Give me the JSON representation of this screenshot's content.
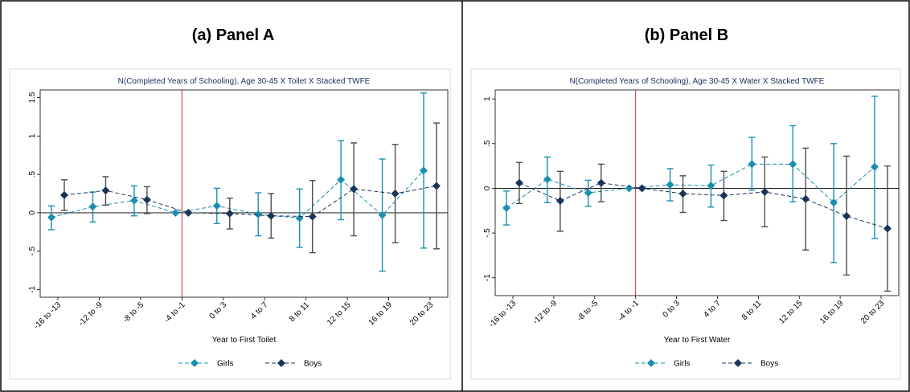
{
  "colors": {
    "girls": "#1b8fb0",
    "boys": "#1a3558",
    "boys_ci": "#4d4d4d",
    "event_line": "#cc3333",
    "background": "#ffffff",
    "border": "#000000"
  },
  "panels": [
    {
      "panel_title": "(a) Panel A",
      "chart_data": {
        "type": "line",
        "title": "N(Completed Years of Schooling), Age 30-45 X Toilet X Stacked TWFE",
        "xlabel": "Year to First Toilet",
        "ylabel": "",
        "categories": [
          "-16 to -13",
          "-12 to -9",
          "-8 to -5",
          "-4 to -1",
          "0 to 3",
          "4 to 7",
          "8 to 11",
          "12 to 15",
          "16 to 19",
          "20 to 23"
        ],
        "ylim": [
          -1.1,
          1.6
        ],
        "yticks": [
          -1,
          -0.5,
          0,
          0.5,
          1,
          1.5
        ],
        "ytick_labels": [
          "-1",
          "-.5",
          "0",
          ".5",
          "1",
          "1.5"
        ],
        "event_line_category": "-4 to -1",
        "grid": false,
        "legend_position": "bottom",
        "series": [
          {
            "name": "Girls",
            "values": [
              -0.06,
              0.08,
              0.16,
              0.0,
              0.09,
              -0.02,
              -0.07,
              0.43,
              -0.03,
              0.55
            ],
            "lower": [
              -0.22,
              -0.12,
              -0.04,
              0.0,
              -0.14,
              -0.3,
              -0.45,
              -0.09,
              -0.76,
              -0.46
            ],
            "upper": [
              0.09,
              0.27,
              0.35,
              0.0,
              0.32,
              0.26,
              0.31,
              0.94,
              0.7,
              1.56
            ]
          },
          {
            "name": "Boys",
            "values": [
              0.23,
              0.29,
              0.17,
              0.0,
              -0.01,
              -0.04,
              -0.05,
              0.31,
              0.25,
              0.35
            ],
            "lower": [
              0.03,
              0.1,
              -0.01,
              0.0,
              -0.21,
              -0.33,
              -0.52,
              -0.3,
              -0.39,
              -0.47
            ],
            "upper": [
              0.43,
              0.47,
              0.34,
              0.0,
              0.19,
              0.25,
              0.42,
              0.91,
              0.89,
              1.17
            ]
          }
        ]
      }
    },
    {
      "panel_title": "(b) Panel B",
      "chart_data": {
        "type": "line",
        "title": "N(Completed Years of Schooling), Age 30-45 X Water X Stacked TWFE",
        "xlabel": "Year to First Water",
        "ylabel": "",
        "categories": [
          "-16 to -13",
          "-12 to -9",
          "-8 to -5",
          "-4 to -1",
          "0 to 3",
          "4 to 7",
          "8 to 11",
          "12 to 15",
          "16 to 19",
          "20 to 23"
        ],
        "ylim": [
          -1.2,
          1.1
        ],
        "yticks": [
          -1,
          -0.5,
          0,
          0.5,
          1
        ],
        "ytick_labels": [
          "-1",
          "-.5",
          "0",
          ".5",
          "1"
        ],
        "event_line_category": "-4 to -1",
        "grid": false,
        "legend_position": "bottom",
        "series": [
          {
            "name": "Girls",
            "values": [
              -0.22,
              0.1,
              -0.05,
              0.0,
              0.04,
              0.03,
              0.27,
              0.27,
              -0.16,
              0.24
            ],
            "lower": [
              -0.41,
              -0.16,
              -0.2,
              0.0,
              -0.14,
              -0.21,
              -0.02,
              -0.15,
              -0.83,
              -0.56
            ],
            "upper": [
              -0.03,
              0.35,
              0.09,
              0.0,
              0.22,
              0.26,
              0.57,
              0.7,
              0.5,
              1.03
            ]
          },
          {
            "name": "Boys",
            "values": [
              0.06,
              -0.14,
              0.06,
              0.0,
              -0.06,
              -0.08,
              -0.04,
              -0.12,
              -0.31,
              -0.45
            ],
            "lower": [
              -0.17,
              -0.48,
              -0.15,
              0.0,
              -0.27,
              -0.36,
              -0.43,
              -0.69,
              -0.97,
              -1.15
            ],
            "upper": [
              0.29,
              0.19,
              0.27,
              0.0,
              0.14,
              0.19,
              0.35,
              0.45,
              0.36,
              0.25
            ]
          }
        ]
      }
    }
  ]
}
